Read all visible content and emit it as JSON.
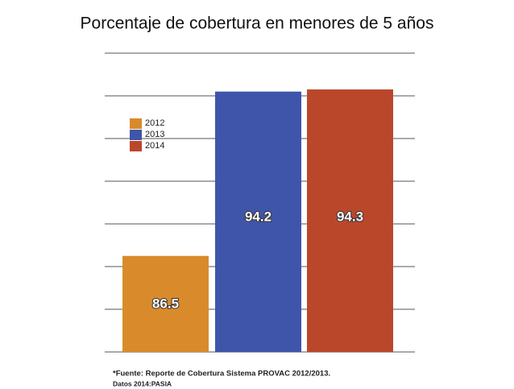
{
  "chart_data": {
    "type": "bar",
    "title": "Porcentaje de cobertura en menores de 5 años",
    "categories": [
      "2012",
      "2013",
      "2014"
    ],
    "values": [
      86.5,
      94.2,
      94.3
    ],
    "colors": [
      "#d98b2b",
      "#3f55a9",
      "#bb472b"
    ],
    "ylim": [
      82,
      96
    ],
    "yticks": [
      82,
      84,
      86,
      88,
      90,
      92,
      94,
      96
    ],
    "grid": true,
    "legend": "upper left",
    "annotations": [
      "*Fuente: Reporte de Cobertura Sistema PROVAC 2012/2013.",
      "Datos 2014:PASIA"
    ]
  }
}
